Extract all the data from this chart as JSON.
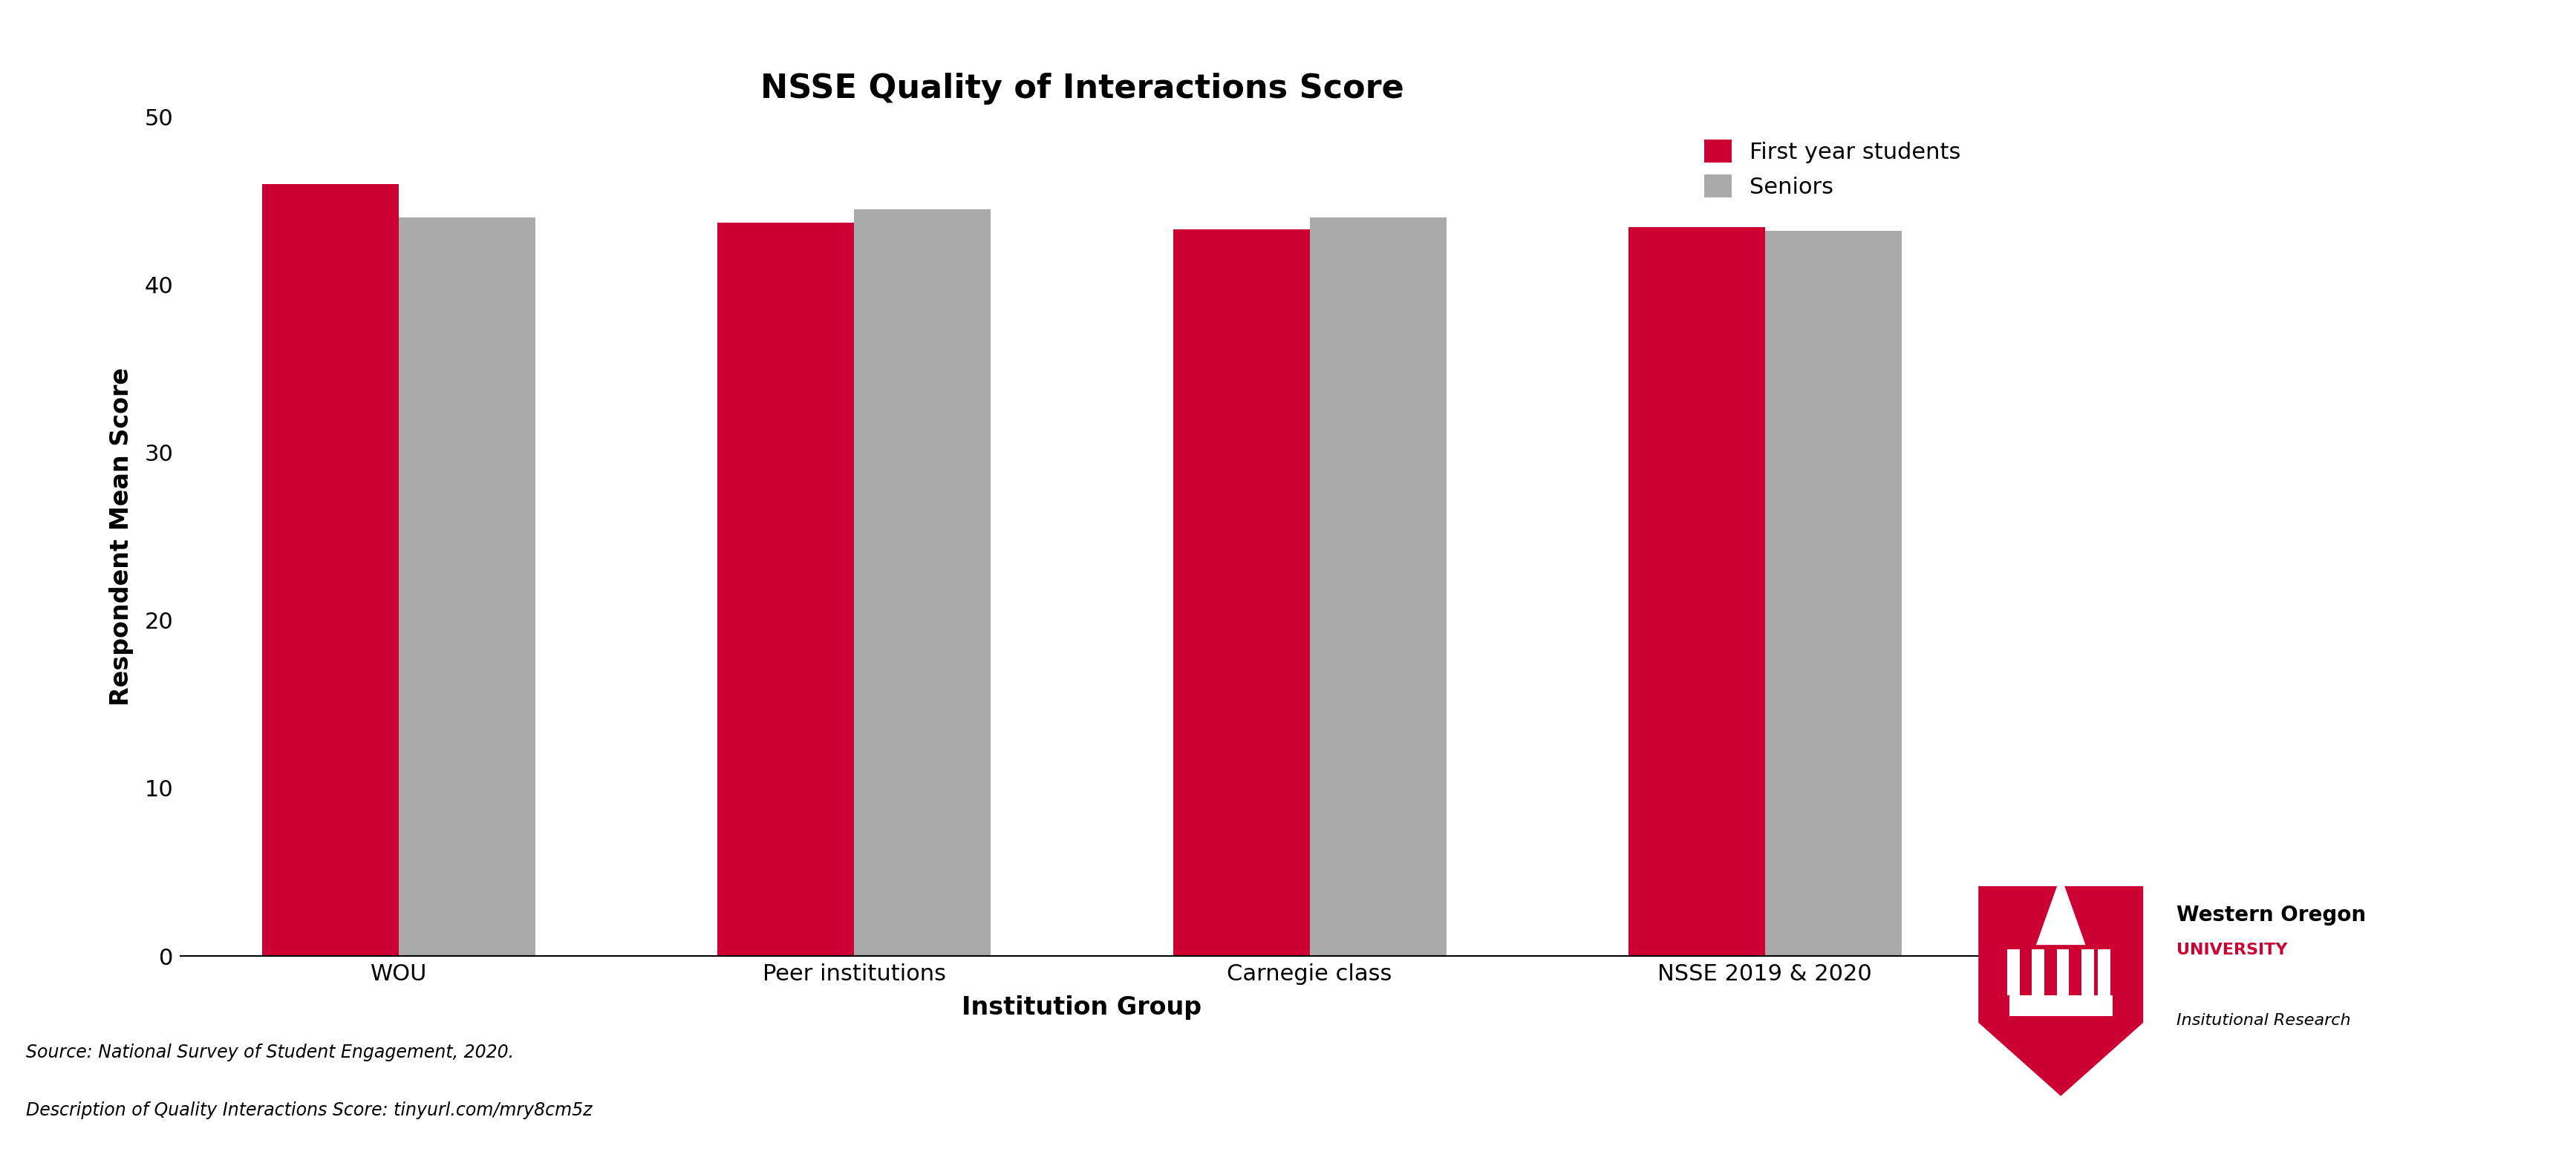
{
  "title": "NSSE Quality of Interactions Score",
  "xlabel": "Institution Group",
  "ylabel": "Respondent Mean Score",
  "categories": [
    "WOU",
    "Peer institutions",
    "Carnegie class",
    "NSSE 2019 & 2020"
  ],
  "first_year": [
    46.0,
    43.7,
    43.3,
    43.4
  ],
  "seniors": [
    44.0,
    44.5,
    44.0,
    43.2
  ],
  "first_year_color": "#CC0033",
  "seniors_color": "#AAAAAA",
  "ylim": [
    0,
    50
  ],
  "yticks": [
    0,
    10,
    20,
    30,
    40,
    50
  ],
  "bar_width": 0.3,
  "legend_labels": [
    "First year students",
    "Seniors"
  ],
  "source_text": "Source: National Survey of Student Engagement, 2020.",
  "desc_text": "Description of Quality Interactions Score: tinyurl.com/mry8cm5z",
  "title_fontsize": 32,
  "axis_label_fontsize": 24,
  "tick_fontsize": 22,
  "legend_fontsize": 22,
  "source_fontsize": 17,
  "background_color": "#FFFFFF"
}
